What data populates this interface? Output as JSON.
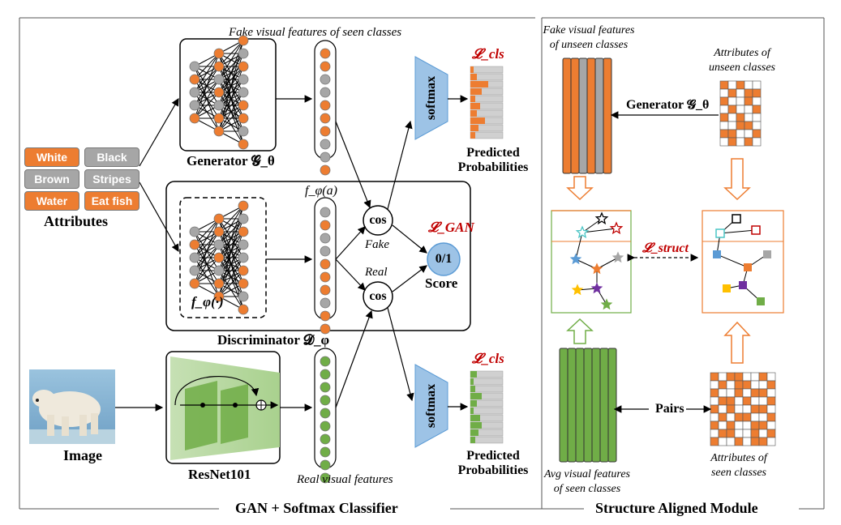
{
  "left_panel": {
    "attributes_title": "Attributes",
    "attributes": [
      {
        "label": "White",
        "color": "#ed7d31"
      },
      {
        "label": "Black",
        "color": "#a6a6a6"
      },
      {
        "label": "Brown",
        "color": "#a6a6a6"
      },
      {
        "label": "Stripes",
        "color": "#a6a6a6"
      },
      {
        "label": "Water",
        "color": "#ed7d31"
      },
      {
        "label": "Eat fish",
        "color": "#ed7d31"
      }
    ],
    "image_label": "Image",
    "generator_label": "Generator 𝓖_θ",
    "discriminator_label": "Discriminator 𝓓_φ",
    "f_phi_label": "f_φ(·)",
    "f_phi_a_label": "f_φ(a)",
    "resnet_label": "ResNet101",
    "fake_features_label": "Fake visual features of seen classes",
    "real_features_label": "Real visual features",
    "cos_label": "cos",
    "fake_label": "Fake",
    "real_label": "Real",
    "score_value": "0/1",
    "score_label": "Score",
    "loss_gan": "𝓛_GAN",
    "loss_cls": "𝓛_cls",
    "softmax_label": "softmax",
    "predicted_prob_label_1": "Predicted",
    "predicted_prob_label_2": "Probabilities",
    "footer": "GAN + Softmax Classifier"
  },
  "right_panel": {
    "fake_unseen_label_1": "Fake visual features",
    "fake_unseen_label_2": "of unseen classes",
    "attr_unseen_label_1": "Attributes of",
    "attr_unseen_label_2": "unseen classes",
    "generator_label": "Generator 𝓖_θ",
    "loss_struct": "𝓛_struct",
    "pairs_label": "Pairs",
    "avg_visual_label_1": "Avg visual features",
    "avg_visual_label_2": "of seen classes",
    "attr_seen_label_1": "Attributes of",
    "attr_seen_label_2": "seen classes",
    "footer": "Structure Aligned Module"
  },
  "colors": {
    "orange": "#ed7d31",
    "gray": "#a6a6a6",
    "green": "#70ad47",
    "blue": "#5b9bd5",
    "red": "#c00000"
  }
}
